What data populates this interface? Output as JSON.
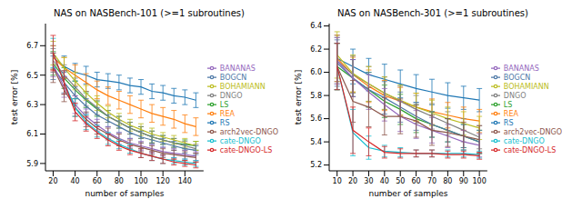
{
  "chart_data": [
    {
      "type": "line",
      "title": "NAS on NASBench-101 (>=1 subroutines)",
      "x_label": "number of samples",
      "y_label": "test error [%]",
      "x": [
        20,
        30,
        40,
        50,
        60,
        70,
        80,
        90,
        100,
        110,
        120,
        130,
        140,
        150
      ],
      "xlim": [
        13,
        157
      ],
      "xticks": [
        20,
        40,
        60,
        80,
        100,
        120,
        140
      ],
      "ylim": [
        5.85,
        6.85
      ],
      "yticks": [
        5.9,
        6.1,
        6.3,
        6.5,
        6.7
      ],
      "grid": false,
      "legend": "right",
      "series": [
        {
          "name": "RS",
          "color": "#1f77b4",
          "values": [
            6.62,
            6.56,
            6.52,
            6.5,
            6.47,
            6.46,
            6.45,
            6.43,
            6.42,
            6.39,
            6.38,
            6.36,
            6.35,
            6.33
          ],
          "errors": [
            0.08,
            0.07,
            0.06,
            0.06,
            0.05,
            0.05,
            0.05,
            0.05,
            0.05,
            0.05,
            0.05,
            0.05,
            0.05,
            0.05
          ]
        },
        {
          "name": "REA",
          "color": "#ff7f0e",
          "values": [
            6.62,
            6.55,
            6.5,
            6.45,
            6.4,
            6.36,
            6.33,
            6.3,
            6.27,
            6.24,
            6.22,
            6.2,
            6.17,
            6.15
          ],
          "errors": [
            0.08,
            0.07,
            0.07,
            0.06,
            0.06,
            0.06,
            0.06,
            0.06,
            0.06,
            0.06,
            0.06,
            0.06,
            0.06,
            0.06
          ]
        },
        {
          "name": "LS",
          "color": "#2ca02c",
          "values": [
            6.58,
            6.48,
            6.4,
            6.33,
            6.27,
            6.22,
            6.18,
            6.14,
            6.11,
            6.08,
            6.06,
            6.04,
            6.03,
            6.02
          ],
          "errors": [
            0.08,
            0.07,
            0.06,
            0.05,
            0.05,
            0.04,
            0.04,
            0.04,
            0.04,
            0.04,
            0.03,
            0.03,
            0.03,
            0.03
          ]
        },
        {
          "name": "DNGO",
          "color": "#7f7f7f",
          "values": [
            6.6,
            6.5,
            6.42,
            6.34,
            6.28,
            6.22,
            6.18,
            6.14,
            6.11,
            6.08,
            6.06,
            6.04,
            6.02,
            6.0
          ],
          "errors": [
            0.08,
            0.07,
            0.06,
            0.05,
            0.05,
            0.04,
            0.04,
            0.04,
            0.04,
            0.04,
            0.03,
            0.03,
            0.03,
            0.03
          ]
        },
        {
          "name": "BOHAMIANN",
          "color": "#bcbd22",
          "values": [
            6.65,
            6.55,
            6.46,
            6.38,
            6.31,
            6.25,
            6.2,
            6.16,
            6.13,
            6.1,
            6.08,
            6.06,
            6.04,
            6.02
          ],
          "errors": [
            0.08,
            0.07,
            0.06,
            0.05,
            0.05,
            0.04,
            0.04,
            0.04,
            0.04,
            0.04,
            0.03,
            0.03,
            0.03,
            0.03
          ]
        },
        {
          "name": "BOGCN",
          "color": "#4e79a7",
          "values": [
            6.55,
            6.45,
            6.36,
            6.29,
            6.23,
            6.19,
            6.15,
            6.11,
            6.08,
            6.06,
            6.04,
            6.02,
            6.0,
            5.99
          ],
          "errors": [
            0.08,
            0.07,
            0.06,
            0.05,
            0.05,
            0.04,
            0.04,
            0.04,
            0.04,
            0.03,
            0.03,
            0.03,
            0.03,
            0.03
          ]
        },
        {
          "name": "BANANAS",
          "color": "#9467bd",
          "values": [
            6.57,
            6.42,
            6.3,
            6.22,
            6.16,
            6.11,
            6.07,
            6.04,
            6.02,
            6.0,
            5.98,
            5.97,
            5.96,
            5.95
          ],
          "errors": [
            0.08,
            0.07,
            0.06,
            0.05,
            0.04,
            0.04,
            0.04,
            0.03,
            0.03,
            0.03,
            0.03,
            0.03,
            0.03,
            0.03
          ]
        },
        {
          "name": "arch2vec-DNGO",
          "color": "#8c564b",
          "values": [
            6.55,
            6.4,
            6.28,
            6.2,
            6.14,
            6.1,
            6.06,
            6.03,
            6.01,
            5.99,
            5.97,
            5.96,
            5.95,
            5.94
          ],
          "errors": [
            0.1,
            0.08,
            0.06,
            0.05,
            0.04,
            0.04,
            0.04,
            0.03,
            0.03,
            0.03,
            0.03,
            0.03,
            0.03,
            0.03
          ]
        },
        {
          "name": "cate-DNGO",
          "color": "#17becf",
          "values": [
            6.65,
            6.45,
            6.28,
            6.18,
            6.12,
            6.07,
            6.03,
            6.0,
            5.97,
            5.95,
            5.93,
            5.92,
            5.91,
            5.9
          ],
          "errors": [
            0.1,
            0.08,
            0.06,
            0.05,
            0.04,
            0.04,
            0.03,
            0.03,
            0.03,
            0.03,
            0.03,
            0.02,
            0.02,
            0.02
          ]
        },
        {
          "name": "cate-DNGO-LS",
          "color": "#d62728",
          "values": [
            6.65,
            6.45,
            6.25,
            6.17,
            6.11,
            6.06,
            6.02,
            5.99,
            5.97,
            5.95,
            5.93,
            5.91,
            5.9,
            5.89
          ],
          "errors": [
            0.12,
            0.08,
            0.06,
            0.05,
            0.04,
            0.04,
            0.03,
            0.03,
            0.03,
            0.03,
            0.03,
            0.02,
            0.02,
            0.02
          ]
        }
      ]
    },
    {
      "type": "line",
      "title": "NAS on NASBench-301 (>=1 subroutines)",
      "x_label": "number of samples",
      "y_label": "test error [%]",
      "x": [
        10,
        20,
        30,
        40,
        50,
        60,
        70,
        80,
        90,
        100
      ],
      "xlim": [
        5,
        105
      ],
      "xticks": [
        10,
        20,
        30,
        40,
        50,
        60,
        70,
        80,
        90,
        100
      ],
      "ylim": [
        5.15,
        6.42
      ],
      "yticks": [
        5.2,
        5.4,
        5.6,
        5.8,
        {
          "value": 6,
          "label": "6.0"
        },
        6.2,
        6.4
      ],
      "grid": false,
      "legend": "right",
      "series": [
        {
          "name": "RS",
          "color": "#1f77b4",
          "values": [
            6.12,
            6.05,
            5.98,
            5.94,
            5.9,
            5.86,
            5.83,
            5.8,
            5.78,
            5.76
          ],
          "errors": [
            0.2,
            0.15,
            0.14,
            0.13,
            0.12,
            0.12,
            0.11,
            0.11,
            0.1,
            0.1
          ]
        },
        {
          "name": "REA",
          "color": "#ff7f0e",
          "values": [
            6.12,
            5.98,
            5.88,
            5.8,
            5.75,
            5.7,
            5.66,
            5.63,
            5.6,
            5.58
          ],
          "errors": [
            0.2,
            0.15,
            0.14,
            0.13,
            0.12,
            0.12,
            0.11,
            0.11,
            0.1,
            0.1
          ]
        },
        {
          "name": "LS",
          "color": "#2ca02c",
          "values": [
            6.05,
            5.95,
            5.85,
            5.75,
            5.68,
            5.6,
            5.55,
            5.5,
            5.45,
            5.4
          ],
          "errors": [
            0.2,
            0.16,
            0.15,
            0.14,
            0.13,
            0.12,
            0.11,
            0.1,
            0.1,
            0.1
          ]
        },
        {
          "name": "DNGO",
          "color": "#7f7f7f",
          "values": [
            6.1,
            5.98,
            5.9,
            5.82,
            5.75,
            5.68,
            5.62,
            5.56,
            5.5,
            5.44
          ],
          "errors": [
            0.2,
            0.16,
            0.15,
            0.14,
            0.13,
            0.12,
            0.11,
            0.1,
            0.1,
            0.1
          ]
        },
        {
          "name": "BOHAMIANN",
          "color": "#bcbd22",
          "values": [
            6.15,
            5.99,
            5.9,
            5.82,
            5.76,
            5.7,
            5.65,
            5.6,
            5.56,
            5.52
          ],
          "errors": [
            0.2,
            0.16,
            0.15,
            0.14,
            0.13,
            0.12,
            0.11,
            0.1,
            0.1,
            0.1
          ]
        },
        {
          "name": "BOGCN",
          "color": "#4e79a7",
          "values": [
            6.08,
            5.95,
            5.85,
            5.78,
            5.7,
            5.62,
            5.55,
            5.5,
            5.45,
            5.4
          ],
          "errors": [
            0.2,
            0.16,
            0.15,
            0.14,
            0.13,
            0.12,
            0.11,
            0.1,
            0.1,
            0.1
          ]
        },
        {
          "name": "BANANAS",
          "color": "#9467bd",
          "values": [
            6.1,
            5.95,
            5.83,
            5.72,
            5.62,
            5.55,
            5.5,
            5.45,
            5.4,
            5.37
          ],
          "errors": [
            0.2,
            0.16,
            0.15,
            0.14,
            0.13,
            0.12,
            0.11,
            0.1,
            0.1,
            0.1
          ]
        },
        {
          "name": "arch2vec-DNGO",
          "color": "#8c564b",
          "values": [
            6.05,
            5.75,
            5.7,
            5.62,
            5.62,
            5.58,
            5.5,
            5.48,
            5.45,
            5.42
          ],
          "errors": [
            0.2,
            0.18,
            0.17,
            0.16,
            0.15,
            0.14,
            0.13,
            0.12,
            0.12,
            0.12
          ]
        },
        {
          "name": "cate-DNGO",
          "color": "#17becf",
          "values": [
            6.05,
            5.48,
            5.35,
            5.32,
            5.31,
            5.3,
            5.3,
            5.3,
            5.3,
            5.29
          ],
          "errors": [
            0.2,
            0.2,
            0.1,
            0.05,
            0.04,
            0.03,
            0.03,
            0.03,
            0.03,
            0.03
          ]
        },
        {
          "name": "cate-DNGO-LS",
          "color": "#d62728",
          "values": [
            6.05,
            5.5,
            5.4,
            5.31,
            5.3,
            5.3,
            5.3,
            5.29,
            5.29,
            5.28
          ],
          "errors": [
            0.2,
            0.2,
            0.12,
            0.05,
            0.04,
            0.03,
            0.03,
            0.03,
            0.03,
            0.03
          ]
        }
      ]
    }
  ]
}
